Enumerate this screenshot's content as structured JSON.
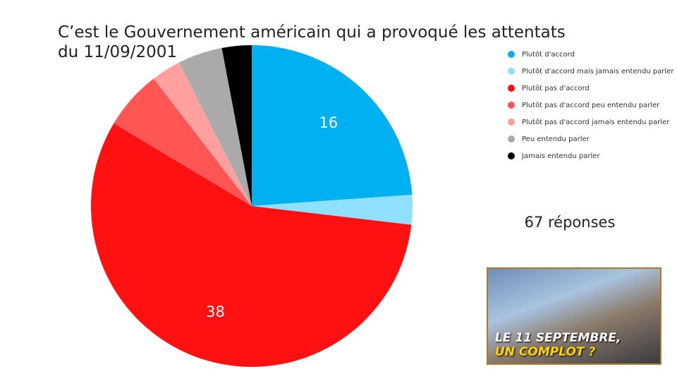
{
  "chart_data": {
    "type": "pie",
    "title": "C’est le Gouvernement américain qui a provoqué les attentats du 11/09/2001",
    "categories": [
      "Plutôt d'accord",
      "Plutôt d'accord mais jamais entendu parler",
      "Plutôt pas d'accord",
      "Plutôt pas d'accord peu entendu parler",
      "Plutôt pas d'accord jamais entendu parler",
      "Peu entendu parler",
      "Jamais entendu parler"
    ],
    "values": [
      16,
      2,
      38,
      4,
      2,
      3,
      2
    ],
    "value_labels": [
      "16",
      null,
      "38",
      null,
      null,
      null,
      null
    ],
    "colors": [
      "#00b0f0",
      "#8fdfff",
      "#ff1111",
      "#ff5555",
      "#ff9f9f",
      "#aaaaaa",
      "#000000"
    ],
    "legend": "right",
    "annotation": "67 réponses"
  },
  "thumbnail": {
    "lines": [
      "LE 11 SEPTEMBRE,",
      "UN COMPLOT ?"
    ]
  }
}
